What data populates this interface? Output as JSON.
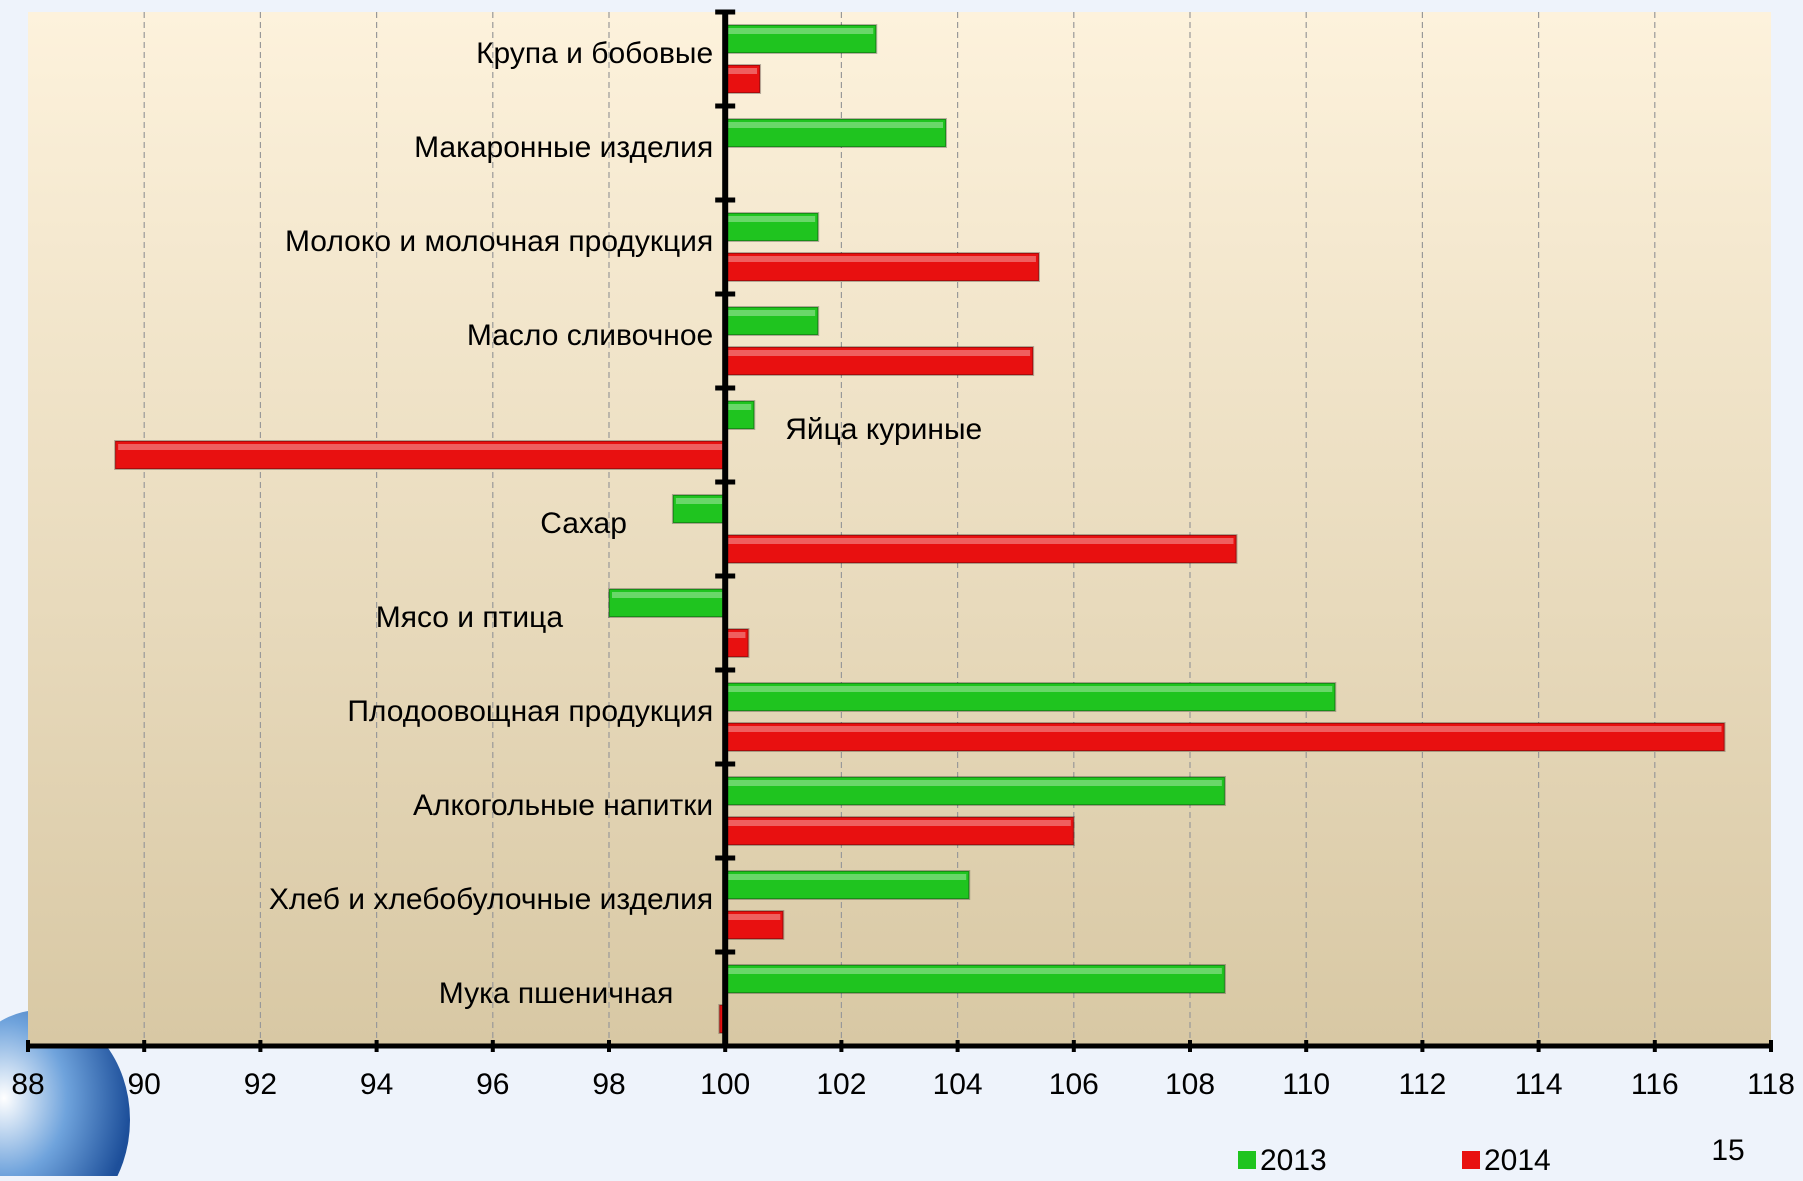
{
  "chart_data": {
    "type": "bar",
    "orientation": "horizontal",
    "base": 100,
    "categories": [
      "Крупа и бобовые",
      "Макаронные изделия",
      "Молоко и молочная продукция",
      "Масло сливочное",
      "Яйца куриные",
      "Сахар",
      "Мясо и птица",
      "Плодоовощная продукция",
      "Алкогольные напитки",
      "Хлеб и хлебобулочные изделия",
      "Мука пшеничная"
    ],
    "series": [
      {
        "name": "2013",
        "color": "#1fc41f",
        "values": [
          102.6,
          103.8,
          101.6,
          101.6,
          100.5,
          99.1,
          98.0,
          110.5,
          108.6,
          104.2,
          108.6
        ]
      },
      {
        "name": "2014",
        "color": "#e81010",
        "values": [
          100.6,
          null,
          105.4,
          105.3,
          89.5,
          108.8,
          100.4,
          117.2,
          106.0,
          101.0,
          99.9
        ]
      }
    ],
    "xlim": [
      88,
      118
    ],
    "xticks": [
      88,
      90,
      92,
      94,
      96,
      98,
      100,
      102,
      104,
      106,
      108,
      110,
      112,
      114,
      116,
      118
    ],
    "grid": true,
    "legend": "bottom",
    "page_number": "15"
  }
}
